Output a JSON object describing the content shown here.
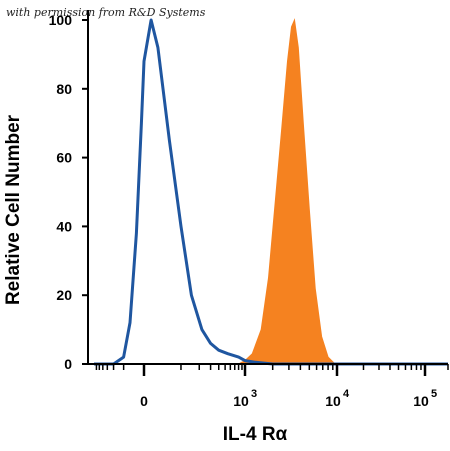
{
  "watermark": "with permission from R&D Systems",
  "chart_data": {
    "type": "area",
    "xlabel": "IL-4 Rα",
    "ylabel": "Relative Cell Number",
    "x_scale": "biexponential",
    "xlim": [
      -700,
      200000
    ],
    "ylim": [
      0,
      100
    ],
    "y_ticks": [
      0,
      20,
      40,
      60,
      80,
      100
    ],
    "x_ticks": [
      {
        "value": 0,
        "label": "0"
      },
      {
        "value": 1000,
        "label": "10",
        "exp": "3"
      },
      {
        "value": 10000,
        "label": "10",
        "exp": "4"
      },
      {
        "value": 100000,
        "label": "10",
        "exp": "5"
      }
    ],
    "grid": false,
    "legend": "none",
    "series": [
      {
        "style": "outline",
        "color": "#1f56a0",
        "points": [
          [
            -700,
            0
          ],
          [
            -200,
            0
          ],
          [
            -100,
            2
          ],
          [
            -60,
            12
          ],
          [
            -30,
            38
          ],
          [
            -10,
            70
          ],
          [
            0,
            88
          ],
          [
            15,
            100
          ],
          [
            30,
            92
          ],
          [
            60,
            65
          ],
          [
            100,
            40
          ],
          [
            150,
            20
          ],
          [
            220,
            10
          ],
          [
            300,
            6
          ],
          [
            400,
            4
          ],
          [
            550,
            3
          ],
          [
            800,
            2
          ],
          [
            1000,
            1
          ],
          [
            1300,
            0.5
          ],
          [
            2000,
            0
          ],
          [
            200000,
            0
          ]
        ]
      },
      {
        "style": "filled",
        "color": "#f58220",
        "points": [
          [
            -700,
            0
          ],
          [
            800,
            0
          ],
          [
            1000,
            1
          ],
          [
            1200,
            3
          ],
          [
            1500,
            10
          ],
          [
            1800,
            25
          ],
          [
            2100,
            45
          ],
          [
            2500,
            68
          ],
          [
            2900,
            88
          ],
          [
            3200,
            98
          ],
          [
            3450,
            100
          ],
          [
            3800,
            92
          ],
          [
            4300,
            70
          ],
          [
            5000,
            45
          ],
          [
            5800,
            22
          ],
          [
            6800,
            8
          ],
          [
            8000,
            2
          ],
          [
            9500,
            0
          ],
          [
            200000,
            0
          ]
        ]
      }
    ]
  }
}
